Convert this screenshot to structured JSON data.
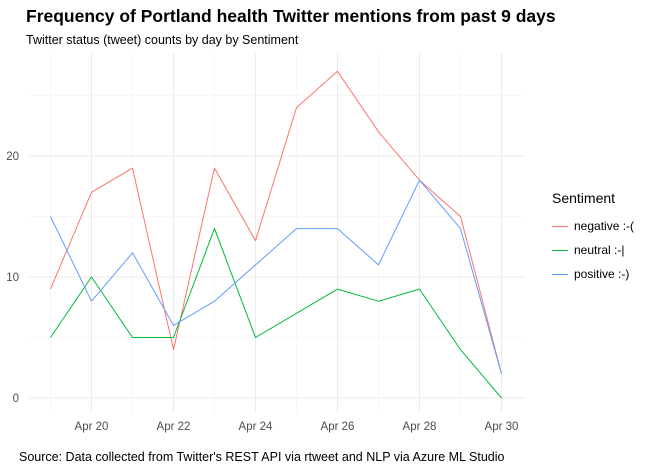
{
  "title": "Frequency of Portland health Twitter mentions from past 9 days",
  "subtitle": "Twitter status (tweet) counts by day by Sentiment",
  "caption": "Source: Data collected from Twitter's REST API via rtweet and NLP via Azure ML Studio",
  "chart_data": {
    "type": "line",
    "title": "Frequency of Portland health Twitter mentions from past 9 days",
    "subtitle": "Twitter status (tweet) counts by day by Sentiment",
    "xlabel": "",
    "ylabel": "",
    "x": [
      "Apr 19",
      "Apr 20",
      "Apr 21",
      "Apr 22",
      "Apr 23",
      "Apr 24",
      "Apr 25",
      "Apr 26",
      "Apr 27",
      "Apr 28",
      "Apr 29",
      "Apr 30"
    ],
    "x_tick_labels": [
      "Apr 20",
      "Apr 22",
      "Apr 24",
      "Apr 26",
      "Apr 28",
      "Apr 30"
    ],
    "y_tick_labels": [
      "0",
      "10",
      "20"
    ],
    "ylim": [
      0,
      27
    ],
    "grid": true,
    "legend": {
      "title": "Sentiment",
      "placement": "right"
    },
    "series": [
      {
        "name": "negative :-(",
        "color": "#F8766D",
        "values": [
          9,
          17,
          19,
          4,
          19,
          13,
          24,
          27,
          22,
          18,
          15,
          2
        ]
      },
      {
        "name": "neutral :-|",
        "color": "#00BA38",
        "values": [
          5,
          10,
          5,
          5,
          14,
          5,
          7,
          9,
          8,
          9,
          4,
          0
        ]
      },
      {
        "name": "positive :-)",
        "color": "#619CFF",
        "values": [
          15,
          8,
          12,
          6,
          8,
          11,
          14,
          14,
          11,
          18,
          14,
          2
        ]
      }
    ]
  }
}
